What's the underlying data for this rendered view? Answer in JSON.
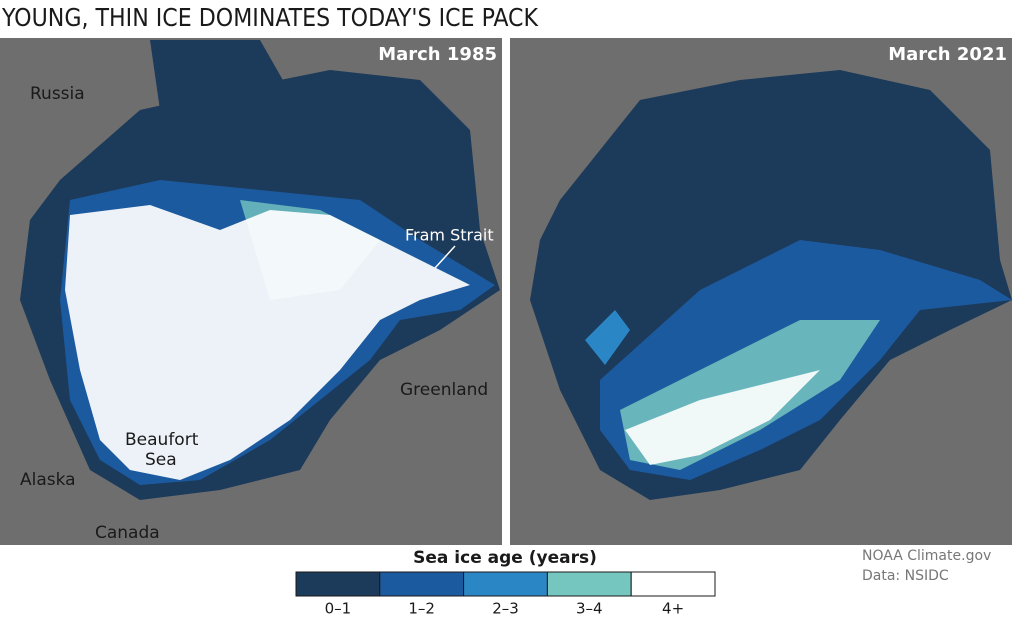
{
  "title": "YOUNG, THIN ICE DOMINATES TODAY'S ICE PACK",
  "panels": [
    {
      "label": "March 1985",
      "places": [
        "Russia",
        "Fram Strait",
        "Greenland",
        "Beaufort",
        "Sea",
        "Alaska",
        "Canada"
      ]
    },
    {
      "label": "March 2021"
    }
  ],
  "legend": {
    "title": "Sea ice age (years)",
    "items": [
      {
        "label": "0–1",
        "color": "#1c3a5a"
      },
      {
        "label": "1–2",
        "color": "#1c5aa0"
      },
      {
        "label": "2–3",
        "color": "#2b86c6"
      },
      {
        "label": "3–4",
        "color": "#76c6c0"
      },
      {
        "label": "4+",
        "color": "#ffffff"
      }
    ]
  },
  "credit": [
    "NOAA Climate.gov",
    "Data: NSIDC"
  ]
}
